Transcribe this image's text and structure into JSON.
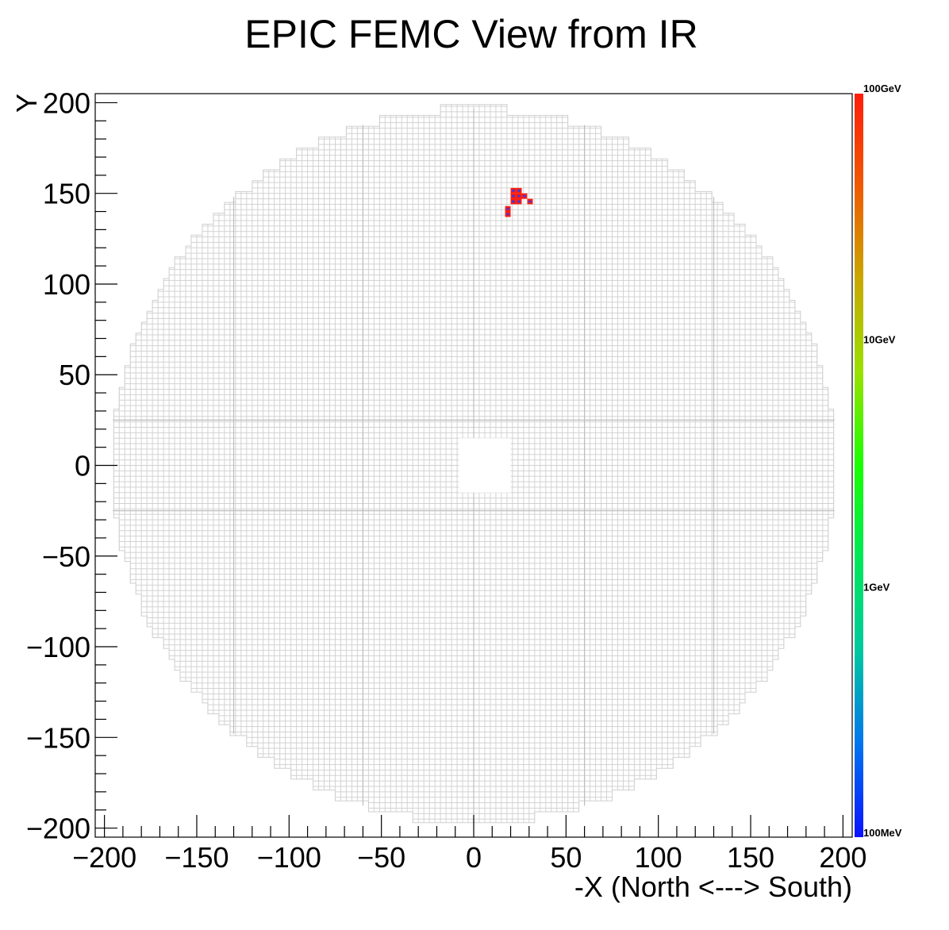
{
  "chart_data": {
    "type": "heatmap",
    "title": "EPIC FEMC View from IR",
    "xlabel": "-X (North <---> South)",
    "ylabel": "Y",
    "xlim": [
      -205,
      205
    ],
    "ylim": [
      -205,
      205
    ],
    "x_ticks": [
      -200,
      -150,
      -100,
      -50,
      0,
      50,
      100,
      150,
      200
    ],
    "y_ticks": [
      -200,
      -150,
      -100,
      -50,
      0,
      50,
      100,
      150,
      200
    ],
    "x_tick_labels": [
      "−200",
      "−150",
      "−100",
      "−50",
      "0",
      "50",
      "100",
      "150",
      "200"
    ],
    "y_tick_labels": [
      "−200",
      "−150",
      "−100",
      "−50",
      "0",
      "50",
      "100",
      "150",
      "200"
    ],
    "detector": {
      "outer_radius": 197,
      "beam_hole": {
        "x": [
          -8,
          20
        ],
        "y": [
          -15,
          15
        ]
      },
      "cell_color": "#cfcfcf"
    },
    "colorbar": {
      "scale": "log",
      "range": [
        "100MeV",
        "100GeV"
      ],
      "labels": [
        "100GeV",
        "10GeV",
        "1GeV",
        "100MeV"
      ],
      "colors": [
        "#0a12ff",
        "#0075f0",
        "#00c8a0",
        "#00e85a",
        "#18ff00",
        "#9ae000",
        "#c8a800",
        "#f05a00",
        "#ff1c0c"
      ]
    },
    "hits": [
      {
        "x": 18.5,
        "y": 138.5,
        "energy": "high"
      },
      {
        "x": 18.5,
        "y": 141.5,
        "energy": "high"
      },
      {
        "x": 21.5,
        "y": 145.5,
        "energy": "high"
      },
      {
        "x": 21.5,
        "y": 148.5,
        "energy": "high"
      },
      {
        "x": 21.5,
        "y": 151.5,
        "energy": "high"
      },
      {
        "x": 24.5,
        "y": 145.5,
        "energy": "high"
      },
      {
        "x": 24.5,
        "y": 148.5,
        "energy": "high"
      },
      {
        "x": 24.5,
        "y": 151.5,
        "energy": "high"
      },
      {
        "x": 27.5,
        "y": 148.5,
        "energy": "high"
      },
      {
        "x": 30.5,
        "y": 145.5,
        "energy": "high"
      }
    ],
    "hit_style": {
      "fill": "#2f39ff",
      "stroke": "#ff1c0c"
    }
  }
}
